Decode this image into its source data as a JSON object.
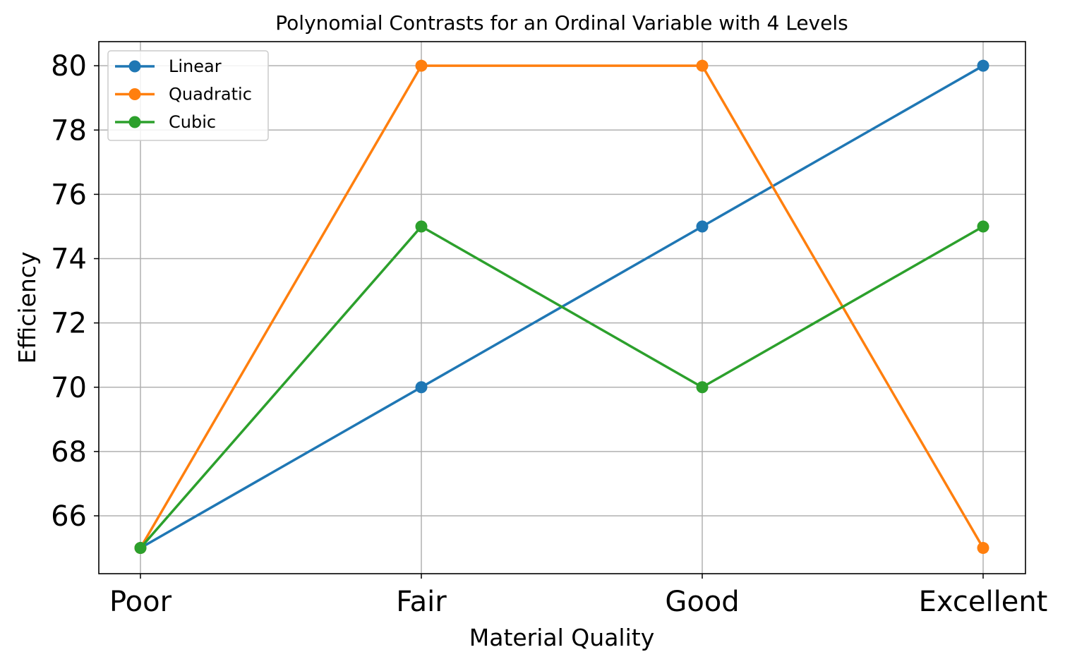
{
  "chart_data": {
    "type": "line",
    "title": "Polynomial Contrasts for an Ordinal Variable with 4 Levels",
    "xlabel": "Material Quality",
    "ylabel": "Efficiency",
    "categories": [
      "Poor",
      "Fair",
      "Good",
      "Excellent"
    ],
    "yticks": [
      66,
      68,
      70,
      72,
      74,
      76,
      78,
      80
    ],
    "ylim": [
      64.2,
      80.75
    ],
    "grid": true,
    "legend_position": "top-left",
    "marker": "circle",
    "series": [
      {
        "name": "Linear",
        "color": "#1f77b4",
        "values": [
          65,
          70,
          75,
          80
        ]
      },
      {
        "name": "Quadratic",
        "color": "#ff7f0e",
        "values": [
          65,
          80,
          80,
          65
        ]
      },
      {
        "name": "Cubic",
        "color": "#2ca02c",
        "values": [
          65,
          75,
          70,
          75
        ]
      }
    ]
  }
}
